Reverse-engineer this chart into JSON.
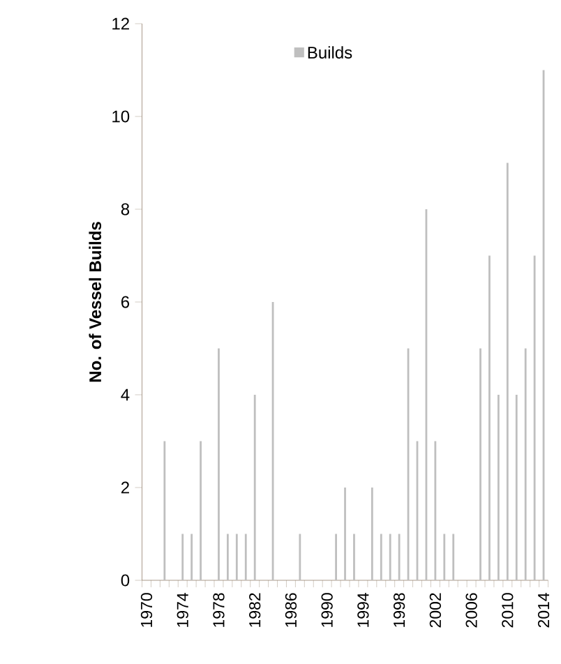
{
  "chart_data": {
    "type": "bar",
    "ylabel": "No. of Vessel Builds",
    "categories": [
      "1970",
      null,
      null,
      null,
      "1974",
      null,
      null,
      null,
      "1978",
      null,
      null,
      null,
      "1982",
      null,
      null,
      null,
      "1986",
      null,
      null,
      null,
      "1990",
      null,
      null,
      null,
      "1994",
      null,
      null,
      null,
      "1998",
      null,
      null,
      null,
      "2002",
      null,
      null,
      null,
      "2006",
      null,
      null,
      null,
      "2010",
      null,
      null,
      null,
      "2014"
    ],
    "series": [
      {
        "name": "Builds",
        "color": "#bfbfbf",
        "values": [
          0,
          0,
          3,
          0,
          1,
          1,
          3,
          0,
          5,
          1,
          1,
          1,
          4,
          0,
          6,
          0,
          0,
          1,
          0,
          0,
          0,
          1,
          2,
          1,
          0,
          2,
          1,
          1,
          1,
          5,
          3,
          8,
          3,
          1,
          1,
          0,
          0,
          5,
          7,
          4,
          9,
          4,
          5,
          7,
          11
        ]
      }
    ],
    "ylim": [
      0,
      12
    ],
    "yticks": [
      0,
      2,
      4,
      6,
      8,
      10,
      12
    ],
    "grid": false,
    "legend": "top"
  }
}
